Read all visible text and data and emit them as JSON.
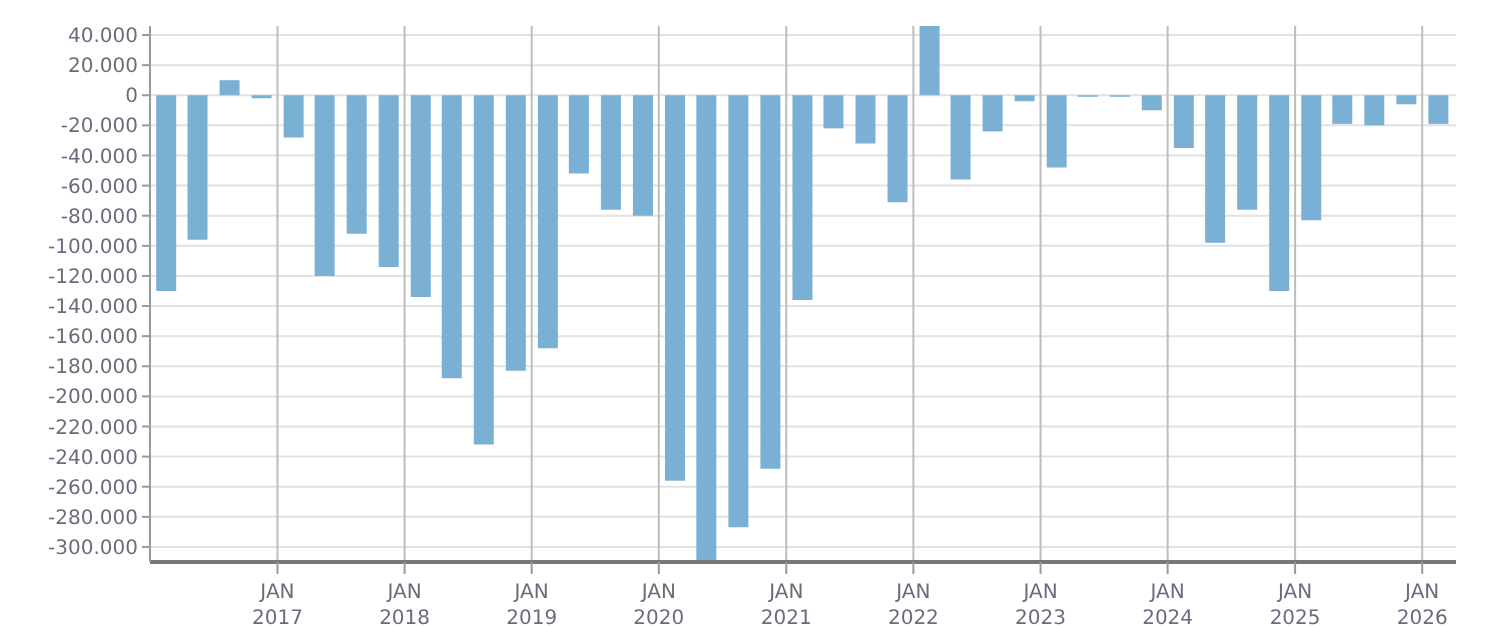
{
  "chart_data": {
    "type": "bar",
    "x": [
      "2016-02-15",
      "2016-05-15",
      "2016-08-15",
      "2016-11-15",
      "2017-02-15",
      "2017-05-15",
      "2017-08-15",
      "2017-11-15",
      "2018-02-15",
      "2018-05-15",
      "2018-08-15",
      "2018-11-15",
      "2019-02-15",
      "2019-05-15",
      "2019-08-15",
      "2019-11-15",
      "2020-02-15",
      "2020-05-15",
      "2020-08-15",
      "2020-11-15",
      "2021-02-15",
      "2021-05-15",
      "2021-08-15",
      "2021-11-15",
      "2022-02-15",
      "2022-05-15",
      "2022-08-15",
      "2022-11-15",
      "2023-02-15",
      "2023-05-15",
      "2023-08-15",
      "2023-11-15",
      "2024-02-15",
      "2024-05-15",
      "2024-08-15",
      "2024-11-15",
      "2025-02-15",
      "2025-05-15",
      "2025-08-15",
      "2025-11-15",
      "2026-02-15"
    ],
    "series": [
      {
        "color": "#7ab0d3",
        "values": [
          -130000,
          -96000,
          10000,
          -2000,
          -28000,
          -120000,
          -92000,
          -114000,
          -134000,
          -188000,
          -232000,
          -183000,
          -168000,
          -52000,
          -76000,
          -80000,
          -256000,
          -310000,
          -287000,
          -248000,
          -136000,
          -22000,
          -32000,
          -71000,
          46000,
          -56000,
          -24000,
          -4000,
          -48000,
          -1000,
          -1000,
          -10000,
          -35000,
          -98000,
          -76000,
          -130000,
          -83000,
          -19000,
          -20000,
          -6000,
          -19000
        ]
      }
    ],
    "xlim": [
      "2016-01",
      "2026-04-08"
    ],
    "xticks": [
      {
        "value": "2017-01",
        "label": "JAN\n2017"
      },
      {
        "value": "2018-01",
        "label": "JAN\n2018"
      },
      {
        "value": "2019-01",
        "label": "JAN\n2019"
      },
      {
        "value": "2020-01",
        "label": "JAN\n2020"
      },
      {
        "value": "2021-01",
        "label": "JAN\n2021"
      },
      {
        "value": "2022-01",
        "label": "JAN\n2022"
      },
      {
        "value": "2023-01",
        "label": "JAN\n2023"
      },
      {
        "value": "2024-01",
        "label": "JAN\n2024"
      },
      {
        "value": "2025-01",
        "label": "JAN\n2025"
      },
      {
        "value": "2026-01",
        "label": "JAN\n2026"
      }
    ],
    "ylim": [
      -310000,
      46000
    ],
    "yticks": [
      {
        "value": 40000,
        "label": "40.000"
      },
      {
        "value": 20000,
        "label": "20.000"
      },
      0,
      {
        "value": -20000,
        "label": "-20.000"
      },
      {
        "value": -40000,
        "label": "-40.000"
      },
      {
        "value": -60000,
        "label": "-60.000"
      },
      {
        "value": -80000,
        "label": "-80.000"
      },
      {
        "value": -100000,
        "label": "-100.000"
      },
      {
        "value": -120000,
        "label": "-120.000"
      },
      {
        "value": -140000,
        "label": "-140.000"
      },
      {
        "value": -160000,
        "label": "-160.000"
      },
      {
        "value": -180000,
        "label": "-180.000"
      },
      {
        "value": -200000,
        "label": "-200.000"
      },
      {
        "value": -220000,
        "label": "-220.000"
      },
      {
        "value": -240000,
        "label": "-240.000"
      },
      {
        "value": -260000,
        "label": "-260.000"
      },
      {
        "value": -280000,
        "label": "-280.000"
      },
      {
        "value": -300000,
        "label": "-300.000"
      }
    ],
    "grid": true
  }
}
